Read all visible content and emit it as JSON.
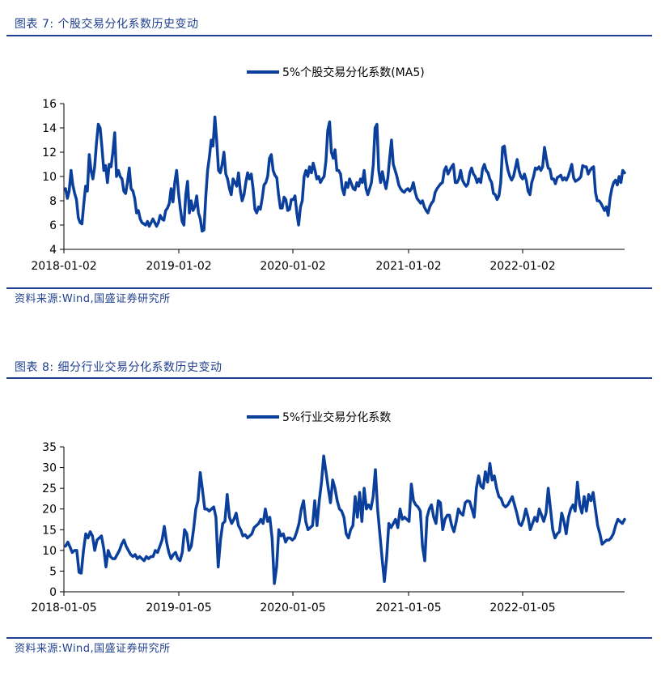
{
  "figure1": {
    "title": "图表 7:  个股交易分化系数历史变动",
    "source": "资料来源:Wind,国盛证券研究所",
    "chart_data": {
      "type": "line",
      "legend_position": "top-center",
      "grid": false,
      "ylim": [
        4,
        16
      ],
      "yticks": [
        4,
        6,
        8,
        10,
        12,
        14,
        16
      ],
      "xticks": [
        "2018-01-02",
        "2019-01-02",
        "2020-01-02",
        "2021-01-02",
        "2022-01-02"
      ],
      "series": [
        {
          "name": "5%个股交易分化系数(MA5)",
          "color": "#0b3f9c",
          "values": [
            9.0,
            8.2,
            8.8,
            10.5,
            9.3,
            8.6,
            8.1,
            6.6,
            6.2,
            6.1,
            7.7,
            9.2,
            8.8,
            11.8,
            10.5,
            9.8,
            10.8,
            12.8,
            14.3,
            14.0,
            12.4,
            10.5,
            10.9,
            9.5,
            11.0,
            10.8,
            12.0,
            13.6,
            10.0,
            10.5,
            10.0,
            9.8,
            8.8,
            8.6,
            9.5,
            10.7,
            9.0,
            8.8,
            8.2,
            7.0,
            7.2,
            6.5,
            6.2,
            6.1,
            6.0,
            6.3,
            5.9,
            6.2,
            6.5,
            6.2,
            5.9,
            6.2,
            6.8,
            6.5,
            6.4,
            7.2,
            7.4,
            7.8,
            9.0,
            7.9,
            9.5,
            10.5,
            8.7,
            7.4,
            6.3,
            6.0,
            8.5,
            9.6,
            7.0,
            8.0,
            7.2,
            7.5,
            8.4,
            7.0,
            6.5,
            5.5,
            5.6,
            8.3,
            10.5,
            11.6,
            13.0,
            12.5,
            14.9,
            13.0,
            10.5,
            10.3,
            11.0,
            12.0,
            10.2,
            9.8,
            9.0,
            8.5,
            9.8,
            9.5,
            9.2,
            10.3,
            8.8,
            8.0,
            8.5,
            9.5,
            10.3,
            9.8,
            10.2,
            9.0,
            7.3,
            7.0,
            7.5,
            7.3,
            8.2,
            9.3,
            9.5,
            10.0,
            11.5,
            11.8,
            10.5,
            10.1,
            9.9,
            8.5,
            7.4,
            7.4,
            8.3,
            8.1,
            7.2,
            7.3,
            8.1,
            8.1,
            8.4,
            7.0,
            6.0,
            7.5,
            8.0,
            10.0,
            10.5,
            10.0,
            10.8,
            10.3,
            11.1,
            10.5,
            9.8,
            10.0,
            9.5,
            9.8,
            10.0,
            11.3,
            13.8,
            14.5,
            12.0,
            11.5,
            12.2,
            10.5,
            10.5,
            10.2,
            9.0,
            8.5,
            9.5,
            9.1,
            9.8,
            9.4,
            9.0,
            8.9,
            9.5,
            9.2,
            9.8,
            9.5,
            10.5,
            9.0,
            8.5,
            9.0,
            9.5,
            11.0,
            14.0,
            14.3,
            10.5,
            9.5,
            10.4,
            9.6,
            9.0,
            9.9,
            11.5,
            13.0,
            11.0,
            10.5,
            10.0,
            9.3,
            9.0,
            8.8,
            8.7,
            8.9,
            9.0,
            8.8,
            9.0,
            9.5,
            8.7,
            8.2,
            8.0,
            7.8,
            8.0,
            7.5,
            7.2,
            7.0,
            7.5,
            7.8,
            8.0,
            8.7,
            9.0,
            9.2,
            9.4,
            9.5,
            10.5,
            10.8,
            10.2,
            10.5,
            10.8,
            11.0,
            9.5,
            9.5,
            9.8,
            10.5,
            9.7,
            9.4,
            9.2,
            9.4,
            10.3,
            10.7,
            10.2,
            10.0,
            9.5,
            9.8,
            9.5,
            10.6,
            11.0,
            10.5,
            10.3,
            9.8,
            9.5,
            8.6,
            8.5,
            8.1,
            8.4,
            9.5,
            12.4,
            12.5,
            11.3,
            10.5,
            10.0,
            9.7,
            10.0,
            10.7,
            11.4,
            10.5,
            10.0,
            9.8,
            10.2,
            9.7,
            8.8,
            8.5,
            9.5,
            10.0,
            10.7,
            10.6,
            10.8,
            10.5,
            10.8,
            12.4,
            11.5,
            10.7,
            10.6,
            9.8,
            9.8,
            9.4,
            9.9,
            10.0,
            10.1,
            9.7,
            9.9,
            9.7,
            10.0,
            10.5,
            11.0,
            9.9,
            9.6,
            9.7,
            9.8,
            10.0,
            10.9,
            10.8,
            10.8,
            10.2,
            10.5,
            10.7,
            10.8,
            8.7,
            8.0,
            8.0,
            7.8,
            7.5,
            7.2,
            7.5,
            6.8,
            8.2,
            9.0,
            9.5,
            9.7,
            9.3,
            10.0,
            9.5,
            10.5,
            10.3
          ]
        }
      ]
    }
  },
  "figure2": {
    "title": "图表 8:  细分行业交易分化系数历史变动",
    "source": "资料来源:Wind,国盛证券研究所",
    "chart_data": {
      "type": "line",
      "legend_position": "top-center",
      "grid": false,
      "ylim": [
        0,
        35
      ],
      "yticks": [
        0,
        5,
        10,
        15,
        20,
        25,
        30,
        35
      ],
      "xticks": [
        "2018-01-05",
        "2019-01-05",
        "2020-01-05",
        "2021-01-05",
        "2022-01-05"
      ],
      "series": [
        {
          "name": "5%行业交易分化系数",
          "color": "#0b3f9c",
          "values": [
            11.0,
            12.0,
            10.8,
            9.5,
            10.0,
            10.0,
            4.7,
            4.5,
            10.0,
            14.0,
            13.0,
            14.5,
            13.5,
            10.0,
            12.5,
            13.0,
            13.5,
            10.5,
            6.0,
            10.0,
            8.5,
            8.0,
            8.0,
            9.0,
            10.0,
            11.5,
            12.5,
            11.0,
            10.0,
            9.0,
            8.5,
            9.0,
            8.0,
            8.5,
            8.0,
            7.5,
            8.5,
            8.0,
            8.5,
            8.5,
            10.0,
            9.5,
            11.0,
            12.5,
            15.8,
            12.0,
            9.5,
            8.0,
            9.0,
            9.5,
            8.0,
            7.5,
            9.5,
            15.0,
            14.0,
            10.0,
            11.0,
            15.0,
            20.0,
            22.0,
            28.8,
            24.5,
            20.0,
            20.0,
            19.5,
            20.0,
            20.5,
            18.0,
            6.0,
            12.5,
            16.5,
            17.0,
            23.5,
            18.0,
            16.5,
            17.5,
            19.0,
            16.0,
            15.0,
            13.5,
            13.8,
            13.0,
            13.5,
            14.0,
            15.5,
            16.0,
            16.5,
            17.5,
            16.5,
            20.0,
            17.0,
            18.0,
            13.0,
            2.0,
            6.0,
            15.0,
            13.5,
            14.0,
            12.0,
            13.0,
            13.0,
            12.5,
            13.0,
            14.5,
            16.5,
            20.0,
            22.0,
            17.0,
            15.0,
            15.5,
            16.0,
            22.0,
            16.0,
            22.0,
            26.5,
            32.8,
            29.0,
            25.0,
            21.5,
            27.0,
            25.0,
            22.0,
            20.0,
            19.5,
            18.0,
            14.0,
            13.0,
            15.0,
            16.0,
            23.0,
            18.0,
            24.0,
            17.0,
            25.0,
            20.0,
            21.0,
            20.0,
            23.0,
            29.5,
            20.0,
            14.0,
            8.0,
            2.5,
            8.0,
            16.5,
            15.5,
            16.5,
            17.5,
            15.5,
            20.0,
            17.5,
            18.0,
            17.5,
            17.0,
            26.0,
            22.0,
            21.0,
            20.5,
            19.5,
            11.0,
            7.5,
            18.0,
            20.0,
            21.0,
            18.0,
            16.5,
            22.0,
            21.5,
            15.0,
            17.5,
            18.5,
            18.5,
            16.0,
            14.5,
            17.0,
            20.0,
            19.0,
            18.5,
            21.5,
            22.0,
            21.8,
            20.0,
            18.0,
            25.0,
            28.0,
            25.5,
            25.0,
            29.0,
            26.5,
            31.0,
            27.0,
            28.0,
            25.0,
            23.0,
            22.5,
            21.0,
            20.5,
            21.0,
            22.0,
            23.0,
            21.0,
            19.0,
            16.5,
            16.0,
            17.5,
            20.0,
            18.0,
            15.0,
            16.5,
            18.0,
            17.0,
            20.0,
            18.5,
            17.0,
            19.0,
            25.0,
            20.0,
            15.0,
            13.0,
            14.0,
            14.5,
            19.0,
            17.0,
            14.0,
            18.0,
            20.0,
            21.0,
            19.5,
            26.5,
            21.0,
            19.0,
            23.0,
            19.5,
            23.5,
            22.0,
            24.0,
            20.0,
            16.0,
            14.0,
            11.5,
            12.0,
            12.5,
            12.5,
            13.0,
            14.0,
            16.0,
            17.5,
            17.0,
            16.5,
            17.5
          ]
        }
      ]
    }
  }
}
